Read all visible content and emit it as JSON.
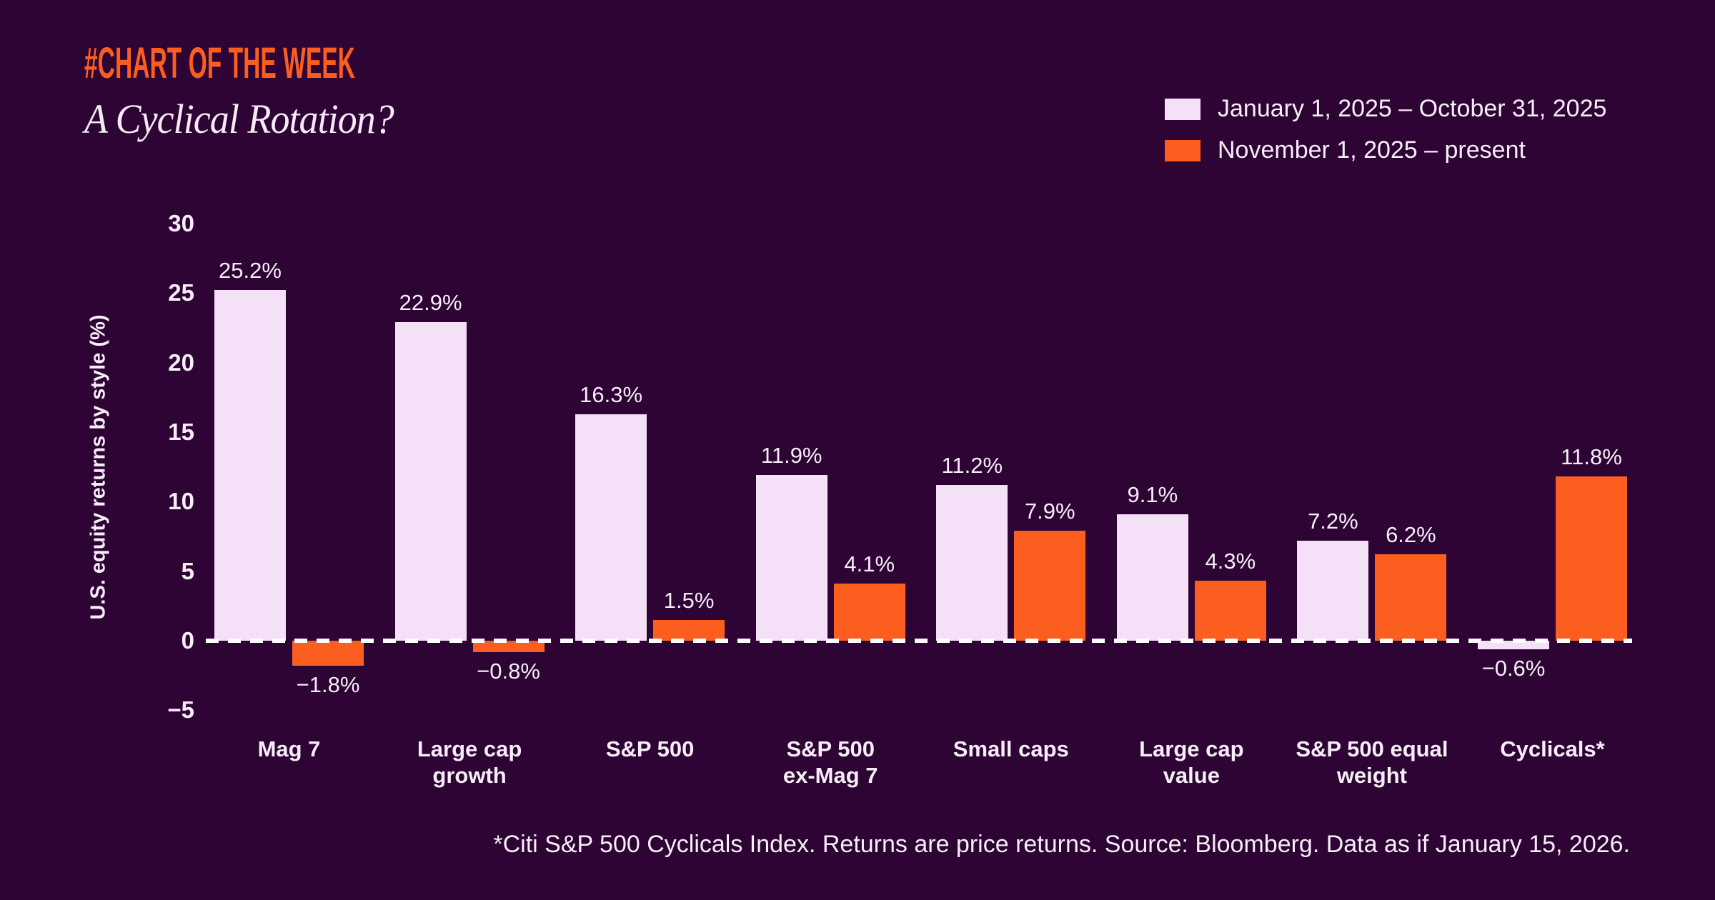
{
  "header": {
    "kicker": "#CHART OF THE WEEK",
    "title": "A Cyclical Rotation?"
  },
  "colors": {
    "background": "#2D0434",
    "accent_orange": "#FC5E20",
    "accent_lavender": "#F5E1F7",
    "text": "#F7EEF8"
  },
  "footnote": "*Citi S&P 500 Cyclicals Index. Returns are price returns. Source: Bloomberg. Data as if January 15, 2026.",
  "chart_data": {
    "type": "bar",
    "title": "A Cyclical Rotation?",
    "xlabel": "",
    "ylabel": "U.S. equity returns by style (%)",
    "ylim": [
      -5,
      30
    ],
    "yticks": [
      30,
      25,
      20,
      15,
      10,
      5,
      0,
      -5
    ],
    "grid": false,
    "legend_position": "top-right",
    "zero_baseline": "dashed-white",
    "value_label_suffix": "%",
    "categories": [
      "Mag 7",
      "Large cap\ngrowth",
      "S&P 500",
      "S&P 500\nex-Mag 7",
      "Small caps",
      "Large cap\nvalue",
      "S&P 500 equal\nweight",
      "Cyclicals*"
    ],
    "series": [
      {
        "name": "January 1, 2025 – October 31, 2025",
        "color": "#F5E1F7",
        "values": [
          25.2,
          22.9,
          16.3,
          11.9,
          11.2,
          9.1,
          7.2,
          -0.6
        ]
      },
      {
        "name": "November 1, 2025 – present",
        "color": "#FC5E20",
        "values": [
          -1.8,
          -0.8,
          1.5,
          4.1,
          7.9,
          4.3,
          6.2,
          11.8
        ]
      }
    ]
  }
}
